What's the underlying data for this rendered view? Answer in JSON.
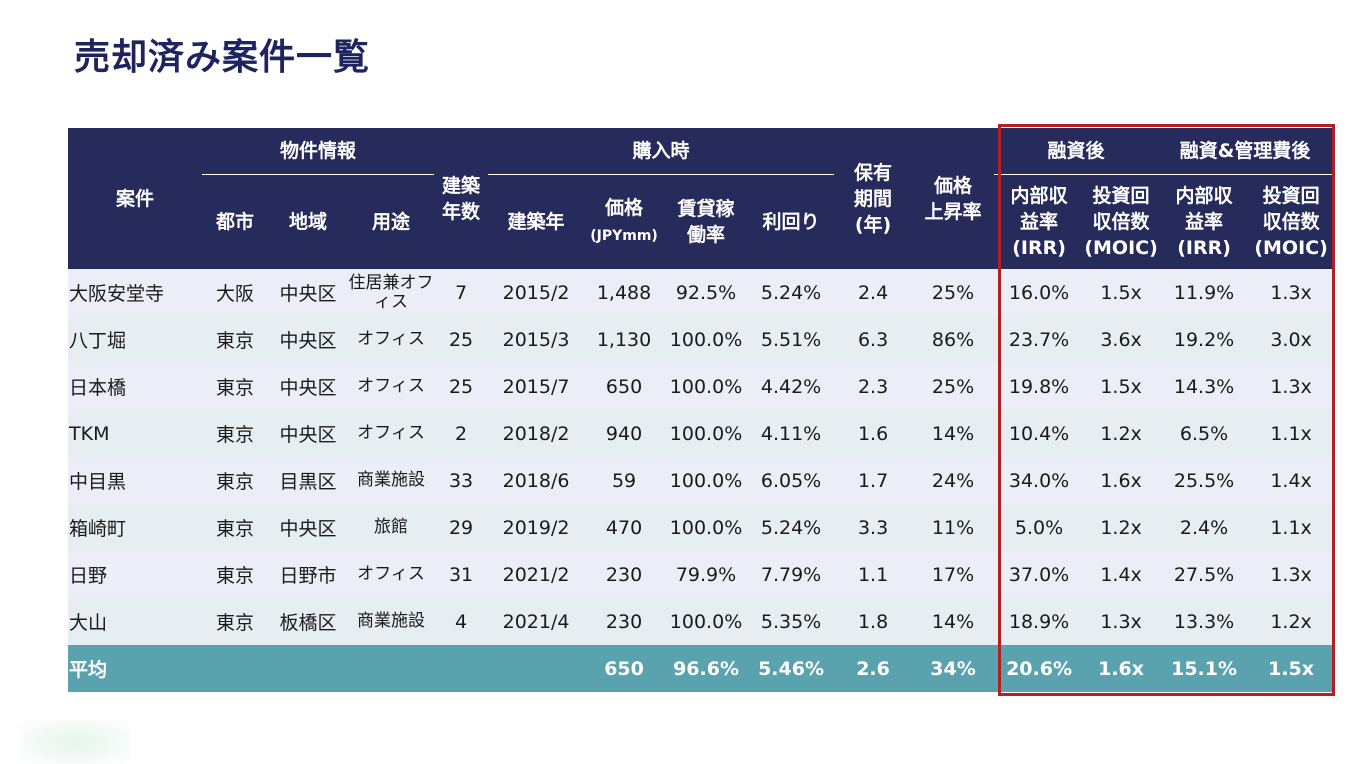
{
  "title": "売却済み案件一覧",
  "header": {
    "project": "案件",
    "property_info": "物件情報",
    "city": "都市",
    "area": "地域",
    "use": "用途",
    "age_line1": "建築",
    "age_line2": "年数",
    "built_year": "建築年",
    "purchase": "購入時",
    "price_line1": "価格",
    "price_unit": "(JPYmm)",
    "occupancy_line1": "賃貸稼",
    "occupancy_line2": "働率",
    "yield": "利回り",
    "holding_line1": "保有",
    "holding_line2": "期間",
    "holding_line3": "(年)",
    "appreciation_line1": "価格",
    "appreciation_line2": "上昇率",
    "after_financing": "融資後",
    "after_financing_mgmt": "融資&管理費後",
    "irr_line1": "内部収",
    "irr_line2": "益率",
    "irr_line3": "(IRR)",
    "moic_line1": "投資回",
    "moic_line2": "収倍数",
    "moic_line3": "(MOIC)"
  },
  "rows": [
    {
      "name": "大阪安堂寺",
      "city": "大阪",
      "area": "中央区",
      "use": "住居兼オフィス",
      "age": "7",
      "built": "2015/2",
      "price": "1,488",
      "occupancy": "92.5%",
      "yield": "5.24%",
      "holding": "2.4",
      "appreciation": "25%",
      "irr1": "16.0%",
      "moic1": "1.5x",
      "irr2": "11.9%",
      "moic2": "1.3x"
    },
    {
      "name": "八丁堀",
      "city": "東京",
      "area": "中央区",
      "use": "オフィス",
      "age": "25",
      "built": "2015/3",
      "price": "1,130",
      "occupancy": "100.0%",
      "yield": "5.51%",
      "holding": "6.3",
      "appreciation": "86%",
      "irr1": "23.7%",
      "moic1": "3.6x",
      "irr2": "19.2%",
      "moic2": "3.0x"
    },
    {
      "name": "日本橋",
      "city": "東京",
      "area": "中央区",
      "use": "オフィス",
      "age": "25",
      "built": "2015/7",
      "price": "650",
      "occupancy": "100.0%",
      "yield": "4.42%",
      "holding": "2.3",
      "appreciation": "25%",
      "irr1": "19.8%",
      "moic1": "1.5x",
      "irr2": "14.3%",
      "moic2": "1.3x"
    },
    {
      "name": "TKM",
      "city": "東京",
      "area": "中央区",
      "use": "オフィス",
      "age": "2",
      "built": "2018/2",
      "price": "940",
      "occupancy": "100.0%",
      "yield": "4.11%",
      "holding": "1.6",
      "appreciation": "14%",
      "irr1": "10.4%",
      "moic1": "1.2x",
      "irr2": "6.5%",
      "moic2": "1.1x"
    },
    {
      "name": "中目黒",
      "city": "東京",
      "area": "目黒区",
      "use": "商業施設",
      "age": "33",
      "built": "2018/6",
      "price": "59",
      "occupancy": "100.0%",
      "yield": "6.05%",
      "holding": "1.7",
      "appreciation": "24%",
      "irr1": "34.0%",
      "moic1": "1.6x",
      "irr2": "25.5%",
      "moic2": "1.4x"
    },
    {
      "name": "箱崎町",
      "city": "東京",
      "area": "中央区",
      "use": "旅館",
      "age": "29",
      "built": "2019/2",
      "price": "470",
      "occupancy": "100.0%",
      "yield": "5.24%",
      "holding": "3.3",
      "appreciation": "11%",
      "irr1": "5.0%",
      "moic1": "1.2x",
      "irr2": "2.4%",
      "moic2": "1.1x"
    },
    {
      "name": "日野",
      "city": "東京",
      "area": "日野市",
      "use": "オフィス",
      "age": "31",
      "built": "2021/2",
      "price": "230",
      "occupancy": "79.9%",
      "yield": "7.79%",
      "holding": "1.1",
      "appreciation": "17%",
      "irr1": "37.0%",
      "moic1": "1.4x",
      "irr2": "27.5%",
      "moic2": "1.3x"
    },
    {
      "name": "大山",
      "city": "東京",
      "area": "板橋区",
      "use": "商業施設",
      "age": "4",
      "built": "2021/4",
      "price": "230",
      "occupancy": "100.0%",
      "yield": "5.35%",
      "holding": "1.8",
      "appreciation": "14%",
      "irr1": "18.9%",
      "moic1": "1.3x",
      "irr2": "13.3%",
      "moic2": "1.2x"
    }
  ],
  "average": {
    "label": "平均",
    "price": "650",
    "occupancy": "96.6%",
    "yield": "5.46%",
    "holding": "2.6",
    "appreciation": "34%",
    "irr1": "20.6%",
    "moic1": "1.6x",
    "irr2": "15.1%",
    "moic2": "1.5x"
  },
  "colors": {
    "title": "#1e2460",
    "header_bg": "#262b5c",
    "average_bg": "#5aa2ae",
    "highlight_border": "#b21f24"
  }
}
